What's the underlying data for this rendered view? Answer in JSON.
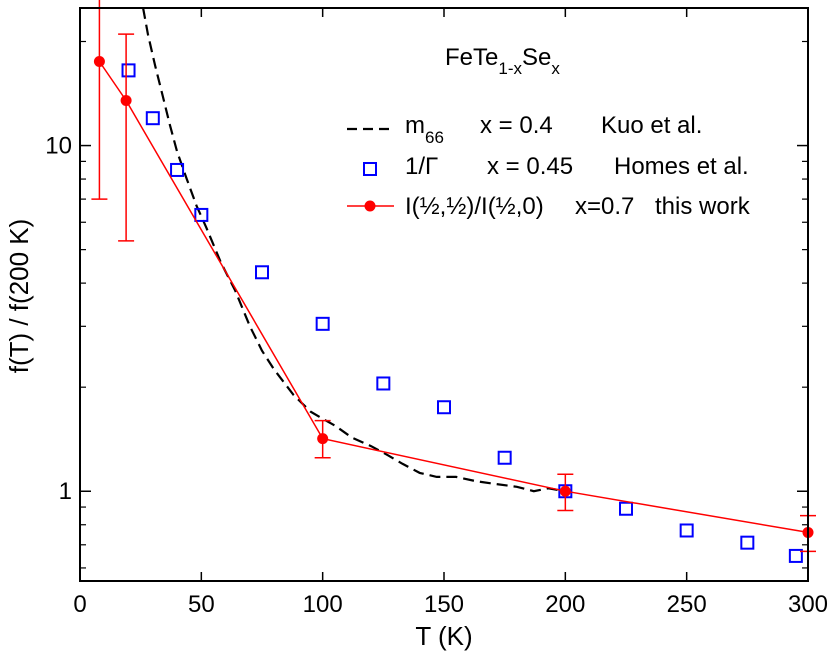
{
  "chart_data": {
    "type": "line",
    "title": "",
    "compound": {
      "base": "FeTe",
      "sub1": "1-x",
      "mid": "Se",
      "sub2": "x"
    },
    "xlabel": "T  (K)",
    "ylabel": "f(T) / f(200 K)",
    "xlim": [
      0,
      300
    ],
    "ylim": [
      0.55,
      25
    ],
    "yscale": "log",
    "xticks": [
      0,
      50,
      100,
      150,
      200,
      250,
      300
    ],
    "xtick_labels": [
      "0",
      "50",
      "100",
      "150",
      "200",
      "250",
      "300"
    ],
    "yticks_major": [
      1,
      10
    ],
    "ytick_labels": [
      "1",
      "10"
    ],
    "yticks_minor": [
      0.6,
      0.7,
      0.8,
      0.9,
      2,
      3,
      4,
      5,
      6,
      7,
      8,
      9,
      20
    ],
    "legend_position": "top-right",
    "series": [
      {
        "name": "m66",
        "legend_main": "m",
        "legend_sub": "66",
        "legend_x": "x = 0.4",
        "legend_source": "Kuo et al.",
        "style": "dashed-line",
        "color": "#000000",
        "x": [
          26,
          28,
          31,
          34,
          37,
          40,
          44,
          48,
          52,
          58,
          64,
          70,
          75,
          80,
          88,
          95,
          100,
          105,
          112,
          120,
          127,
          133,
          140,
          147,
          155,
          163,
          171,
          180,
          187,
          193,
          200
        ],
        "y": [
          25,
          21,
          17,
          14,
          11.5,
          9.6,
          8.0,
          6.7,
          5.8,
          4.6,
          3.8,
          3.0,
          2.55,
          2.25,
          1.9,
          1.7,
          1.62,
          1.55,
          1.43,
          1.35,
          1.27,
          1.2,
          1.13,
          1.1,
          1.1,
          1.07,
          1.05,
          1.03,
          1.0,
          1.02,
          1.0
        ]
      },
      {
        "name": "1/Gamma",
        "legend_main": "1/Γ",
        "legend_x": "x = 0.45",
        "legend_source": "Homes et al.",
        "style": "open-square",
        "color": "#0000ff",
        "x": [
          20,
          30,
          40,
          50,
          75,
          100,
          125,
          150,
          175,
          200,
          225,
          250,
          275,
          295
        ],
        "y": [
          16.5,
          12.0,
          8.5,
          6.3,
          4.3,
          3.05,
          2.05,
          1.75,
          1.25,
          1.0,
          0.89,
          0.77,
          0.71,
          0.65
        ]
      },
      {
        "name": "I(1/2,1/2)/I(1/2,0)",
        "legend_main": "I(½,½)/I(½,0)",
        "legend_x": "x=0.7",
        "legend_source": "this work",
        "style": "line-filled-circle-errorbars",
        "color": "#ff0000",
        "x": [
          8,
          19,
          100,
          200,
          300
        ],
        "y": [
          17.5,
          13.5,
          1.42,
          1.0,
          0.76
        ],
        "err_low": [
          7.0,
          5.3,
          1.25,
          0.88,
          0.67
        ],
        "err_high": [
          27.5,
          21.0,
          1.6,
          1.12,
          0.85
        ]
      }
    ]
  }
}
